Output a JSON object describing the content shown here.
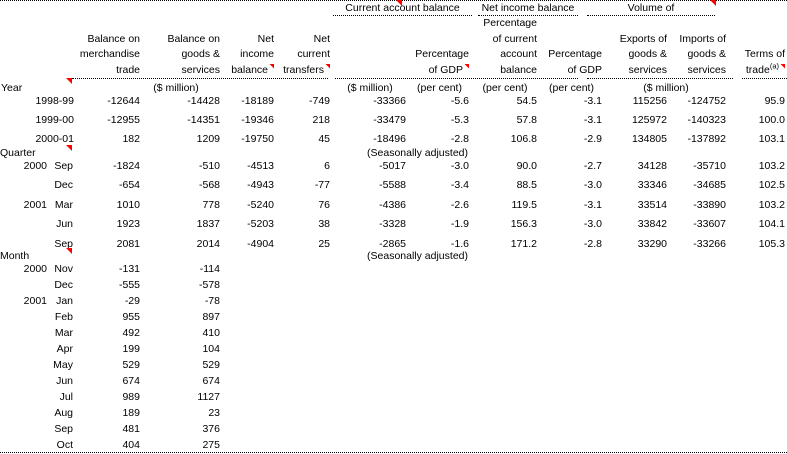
{
  "sheet": {
    "groups": [
      {
        "label": "Current account balance",
        "comment": true
      },
      {
        "label": "Net income balance",
        "comment": false
      },
      {
        "label": "Volume of",
        "comment": true
      }
    ],
    "columns": [
      {
        "lines": [],
        "comment": false
      },
      {
        "lines": [
          "Balance on",
          "merchandise",
          "trade"
        ],
        "comment": false
      },
      {
        "lines": [
          "Balance on",
          "goods &",
          "services"
        ],
        "comment": false
      },
      {
        "lines": [
          "Net",
          "income",
          "balance"
        ],
        "comment": true
      },
      {
        "lines": [
          "Net",
          "current",
          "transfers"
        ],
        "comment": true
      },
      {
        "lines": [],
        "comment": false
      },
      {
        "lines": [
          "Percentage",
          "of GDP"
        ],
        "comment": true
      },
      {
        "lines": [
          "Percentage",
          "of current",
          "account",
          "balance"
        ],
        "comment": false
      },
      {
        "lines": [
          "Percentage",
          "of GDP"
        ],
        "comment": false
      },
      {
        "lines": [
          "Exports of",
          "goods &",
          "services"
        ],
        "comment": false
      },
      {
        "lines": [
          "Imports of",
          "goods &",
          "services"
        ],
        "comment": false
      },
      {
        "lines": [
          "Terms of",
          "trade"
        ],
        "sup": "(a)",
        "comment": true
      }
    ],
    "unit_row": {
      "label": "Year",
      "label_comment": true,
      "units": [
        "($ million)",
        "($ million)",
        "(per cent)",
        "(per cent)",
        "(per cent)",
        "($ million)"
      ]
    },
    "sections": [
      {
        "label": "",
        "comment": false,
        "note": "",
        "rows": [
          {
            "year": "1998-99",
            "period": "",
            "values": [
              "-12644",
              "-14428",
              "-18189",
              "-749",
              "-33366",
              "-5.6",
              "54.5",
              "-3.1",
              "115256",
              "-124752",
              "95.9"
            ]
          },
          {
            "year": "1999-00",
            "period": "",
            "values": [
              "-12955",
              "-14351",
              "-19346",
              "218",
              "-33479",
              "-5.3",
              "57.8",
              "-3.1",
              "125972",
              "-140323",
              "100.0"
            ]
          },
          {
            "year": "2000-01",
            "period": "",
            "values": [
              "182",
              "1209",
              "-19750",
              "45",
              "-18496",
              "-2.8",
              "106.8",
              "-2.9",
              "134805",
              "-137892",
              "103.1"
            ]
          }
        ]
      },
      {
        "label": "Quarter",
        "comment": true,
        "note": "(Seasonally adjusted)",
        "rows": [
          {
            "year": "2000",
            "period": "Sep",
            "values": [
              "-1824",
              "-510",
              "-4513",
              "6",
              "-5017",
              "-3.0",
              "90.0",
              "-2.7",
              "34128",
              "-35710",
              "103.2"
            ]
          },
          {
            "year": "",
            "period": "Dec",
            "values": [
              "-654",
              "-568",
              "-4943",
              "-77",
              "-5588",
              "-3.4",
              "88.5",
              "-3.0",
              "33346",
              "-34685",
              "102.5"
            ]
          },
          {
            "year": "2001",
            "period": "Mar",
            "values": [
              "1010",
              "778",
              "-5240",
              "76",
              "-4386",
              "-2.6",
              "119.5",
              "-3.1",
              "33514",
              "-33890",
              "103.2"
            ]
          },
          {
            "year": "",
            "period": "Jun",
            "values": [
              "1923",
              "1837",
              "-5203",
              "38",
              "-3328",
              "-1.9",
              "156.3",
              "-3.0",
              "33842",
              "-33607",
              "104.1"
            ]
          },
          {
            "year": "",
            "period": "Sep",
            "values": [
              "2081",
              "2014",
              "-4904",
              "25",
              "-2865",
              "-1.6",
              "171.2",
              "-2.8",
              "33290",
              "-33266",
              "105.3"
            ]
          }
        ]
      },
      {
        "label": "Month",
        "comment": true,
        "note": "(Seasonally adjusted)",
        "rows": [
          {
            "year": "2000",
            "period": "Nov",
            "values": [
              "-131",
              "-114",
              "",
              "",
              "",
              "",
              "",
              "",
              "",
              "",
              ""
            ]
          },
          {
            "year": "",
            "period": "Dec",
            "values": [
              "-555",
              "-578",
              "",
              "",
              "",
              "",
              "",
              "",
              "",
              "",
              ""
            ]
          },
          {
            "year": "2001",
            "period": "Jan",
            "values": [
              "-29",
              "-78",
              "",
              "",
              "",
              "",
              "",
              "",
              "",
              "",
              ""
            ]
          },
          {
            "year": "",
            "period": "Feb",
            "values": [
              "955",
              "897",
              "",
              "",
              "",
              "",
              "",
              "",
              "",
              "",
              ""
            ]
          },
          {
            "year": "",
            "period": "Mar",
            "values": [
              "492",
              "410",
              "",
              "",
              "",
              "",
              "",
              "",
              "",
              "",
              ""
            ]
          },
          {
            "year": "",
            "period": "Apr",
            "values": [
              "199",
              "104",
              "",
              "",
              "",
              "",
              "",
              "",
              "",
              "",
              ""
            ]
          },
          {
            "year": "",
            "period": "May",
            "values": [
              "529",
              "529",
              "",
              "",
              "",
              "",
              "",
              "",
              "",
              "",
              ""
            ]
          },
          {
            "year": "",
            "period": "Jun",
            "values": [
              "674",
              "674",
              "",
              "",
              "",
              "",
              "",
              "",
              "",
              "",
              ""
            ]
          },
          {
            "year": "",
            "period": "Jul",
            "values": [
              "989",
              "1127",
              "",
              "",
              "",
              "",
              "",
              "",
              "",
              "",
              ""
            ]
          },
          {
            "year": "",
            "period": "Aug",
            "values": [
              "189",
              "23",
              "",
              "",
              "",
              "",
              "",
              "",
              "",
              "",
              ""
            ]
          },
          {
            "year": "",
            "period": "Sep",
            "values": [
              "481",
              "376",
              "",
              "",
              "",
              "",
              "",
              "",
              "",
              "",
              ""
            ]
          },
          {
            "year": "",
            "period": "Oct",
            "values": [
              "404",
              "275",
              "",
              "",
              "",
              "",
              "",
              "",
              "",
              "",
              ""
            ]
          }
        ]
      }
    ]
  }
}
